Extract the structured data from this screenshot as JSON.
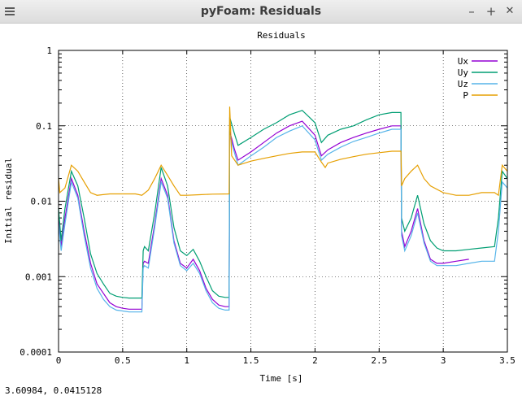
{
  "window": {
    "title": "pyFoam: Residuals",
    "minimize_label": "–",
    "maximize_label": "+",
    "close_label": "✕"
  },
  "status": {
    "cursor_readout": "3.60984,  0.0415128"
  },
  "chart_data": {
    "type": "line",
    "title": "Residuals",
    "xlabel": "Time [s]",
    "ylabel": "Initial residual",
    "xlim": [
      0,
      3.5
    ],
    "ylim": [
      0.0001,
      1
    ],
    "yscale": "log",
    "grid": true,
    "legend_position": "top-right",
    "x_ticks": [
      0,
      0.5,
      1,
      1.5,
      2,
      2.5,
      3,
      3.5
    ],
    "x_tick_labels": [
      "0",
      "0.5",
      "1",
      "1.5",
      "2",
      "2.5",
      "3",
      "3.5"
    ],
    "y_ticks": [
      0.0001,
      0.001,
      0.01,
      0.1,
      1
    ],
    "y_tick_labels": [
      "0.0001",
      "0.001",
      "0.01",
      "0.1",
      "1"
    ],
    "series": [
      {
        "name": "Ux",
        "color": "#9400d3",
        "x": [
          0,
          0.02,
          0.05,
          0.1,
          0.15,
          0.2,
          0.25,
          0.3,
          0.35,
          0.4,
          0.45,
          0.5,
          0.55,
          0.6,
          0.65,
          0.66,
          0.67,
          0.7,
          0.75,
          0.8,
          0.85,
          0.9,
          0.95,
          1.0,
          1.05,
          1.1,
          1.15,
          1.2,
          1.25,
          1.3,
          1.33,
          1.335,
          1.37,
          1.4,
          1.5,
          1.6,
          1.7,
          1.8,
          1.9,
          2.0,
          2.05,
          2.1,
          2.2,
          2.3,
          2.4,
          2.5,
          2.6,
          2.67,
          2.675,
          2.7,
          2.75,
          2.8,
          2.85,
          2.9,
          2.95,
          3.0,
          3.1,
          3.2
        ],
        "y": [
          0.006,
          0.0025,
          0.006,
          0.02,
          0.012,
          0.004,
          0.0015,
          0.0008,
          0.0006,
          0.00045,
          0.0004,
          0.00038,
          0.00037,
          0.00037,
          0.00037,
          0.0015,
          0.0016,
          0.0015,
          0.005,
          0.02,
          0.012,
          0.003,
          0.0015,
          0.0013,
          0.0017,
          0.0012,
          0.0007,
          0.0005,
          0.00042,
          0.0004,
          0.0004,
          0.085,
          0.05,
          0.035,
          0.045,
          0.06,
          0.08,
          0.1,
          0.115,
          0.075,
          0.04,
          0.048,
          0.06,
          0.07,
          0.08,
          0.09,
          0.1,
          0.1,
          0.004,
          0.0025,
          0.004,
          0.008,
          0.003,
          0.0017,
          0.0015,
          0.0015,
          0.0016,
          0.0017
        ]
      },
      {
        "name": "Uy",
        "color": "#009e73",
        "x": [
          0,
          0.02,
          0.05,
          0.1,
          0.15,
          0.2,
          0.25,
          0.3,
          0.35,
          0.4,
          0.45,
          0.5,
          0.55,
          0.6,
          0.65,
          0.66,
          0.67,
          0.7,
          0.75,
          0.8,
          0.85,
          0.9,
          0.95,
          1.0,
          1.05,
          1.1,
          1.15,
          1.2,
          1.25,
          1.3,
          1.33,
          1.335,
          1.37,
          1.4,
          1.5,
          1.6,
          1.7,
          1.8,
          1.9,
          2.0,
          2.05,
          2.1,
          2.2,
          2.3,
          2.4,
          2.5,
          2.6,
          2.67,
          2.675,
          2.7,
          2.75,
          2.8,
          2.85,
          2.9,
          2.95,
          3.0,
          3.1,
          3.2,
          3.3,
          3.4,
          3.43,
          3.46,
          3.5
        ],
        "y": [
          0.008,
          0.003,
          0.008,
          0.025,
          0.016,
          0.006,
          0.002,
          0.0011,
          0.0008,
          0.0006,
          0.00055,
          0.00053,
          0.00052,
          0.00052,
          0.00052,
          0.0022,
          0.0025,
          0.0022,
          0.007,
          0.028,
          0.016,
          0.0045,
          0.0022,
          0.0019,
          0.0023,
          0.0016,
          0.001,
          0.00065,
          0.00055,
          0.00053,
          0.00053,
          0.13,
          0.08,
          0.055,
          0.07,
          0.09,
          0.11,
          0.14,
          0.16,
          0.11,
          0.06,
          0.075,
          0.09,
          0.1,
          0.12,
          0.14,
          0.15,
          0.15,
          0.006,
          0.004,
          0.006,
          0.012,
          0.005,
          0.003,
          0.0024,
          0.0022,
          0.0022,
          0.0023,
          0.0024,
          0.0025,
          0.006,
          0.025,
          0.02
        ]
      },
      {
        "name": "Uz",
        "color": "#56b4e9",
        "x": [
          0,
          0.02,
          0.05,
          0.1,
          0.15,
          0.2,
          0.25,
          0.3,
          0.35,
          0.4,
          0.45,
          0.5,
          0.55,
          0.6,
          0.65,
          0.66,
          0.67,
          0.7,
          0.75,
          0.8,
          0.85,
          0.9,
          0.95,
          1.0,
          1.05,
          1.1,
          1.15,
          1.2,
          1.25,
          1.3,
          1.33,
          1.335,
          1.37,
          1.4,
          1.5,
          1.6,
          1.7,
          1.8,
          1.9,
          2.0,
          2.05,
          2.1,
          2.2,
          2.3,
          2.4,
          2.5,
          2.6,
          2.67,
          2.675,
          2.7,
          2.75,
          2.8,
          2.85,
          2.9,
          2.95,
          3.0,
          3.1,
          3.2,
          3.3,
          3.4,
          3.43,
          3.46,
          3.5
        ],
        "y": [
          0.005,
          0.0022,
          0.005,
          0.018,
          0.011,
          0.0035,
          0.0013,
          0.0007,
          0.0005,
          0.0004,
          0.00036,
          0.00035,
          0.00034,
          0.00034,
          0.00034,
          0.0013,
          0.0014,
          0.0013,
          0.0045,
          0.018,
          0.011,
          0.0028,
          0.0014,
          0.0012,
          0.0015,
          0.0011,
          0.00065,
          0.00045,
          0.00038,
          0.00036,
          0.00036,
          0.075,
          0.045,
          0.03,
          0.04,
          0.052,
          0.07,
          0.085,
          0.1,
          0.065,
          0.035,
          0.042,
          0.052,
          0.062,
          0.07,
          0.08,
          0.09,
          0.09,
          0.0035,
          0.0022,
          0.0035,
          0.007,
          0.0028,
          0.0016,
          0.0014,
          0.0014,
          0.0014,
          0.0015,
          0.0016,
          0.0016,
          0.004,
          0.018,
          0.015
        ]
      },
      {
        "name": "P",
        "color": "#e69f00",
        "x": [
          0,
          0.01,
          0.05,
          0.1,
          0.15,
          0.2,
          0.25,
          0.3,
          0.4,
          0.5,
          0.6,
          0.65,
          0.7,
          0.75,
          0.8,
          0.85,
          0.9,
          0.95,
          1.0,
          1.1,
          1.2,
          1.33,
          1.335,
          1.35,
          1.4,
          1.5,
          1.6,
          1.7,
          1.8,
          1.9,
          2.0,
          2.05,
          2.08,
          2.1,
          2.2,
          2.3,
          2.4,
          2.5,
          2.6,
          2.67,
          2.675,
          2.7,
          2.75,
          2.8,
          2.85,
          2.9,
          3.0,
          3.1,
          3.2,
          3.3,
          3.4,
          3.43,
          3.46,
          3.5
        ],
        "y": [
          0.02,
          0.013,
          0.015,
          0.03,
          0.025,
          0.018,
          0.013,
          0.012,
          0.0125,
          0.0125,
          0.0125,
          0.012,
          0.014,
          0.02,
          0.03,
          0.022,
          0.016,
          0.012,
          0.012,
          0.0122,
          0.0124,
          0.0125,
          0.18,
          0.04,
          0.03,
          0.034,
          0.037,
          0.04,
          0.043,
          0.045,
          0.045,
          0.033,
          0.028,
          0.032,
          0.036,
          0.039,
          0.042,
          0.044,
          0.046,
          0.046,
          0.016,
          0.02,
          0.025,
          0.03,
          0.02,
          0.016,
          0.013,
          0.012,
          0.012,
          0.013,
          0.013,
          0.012,
          0.03,
          0.025
        ]
      }
    ]
  }
}
